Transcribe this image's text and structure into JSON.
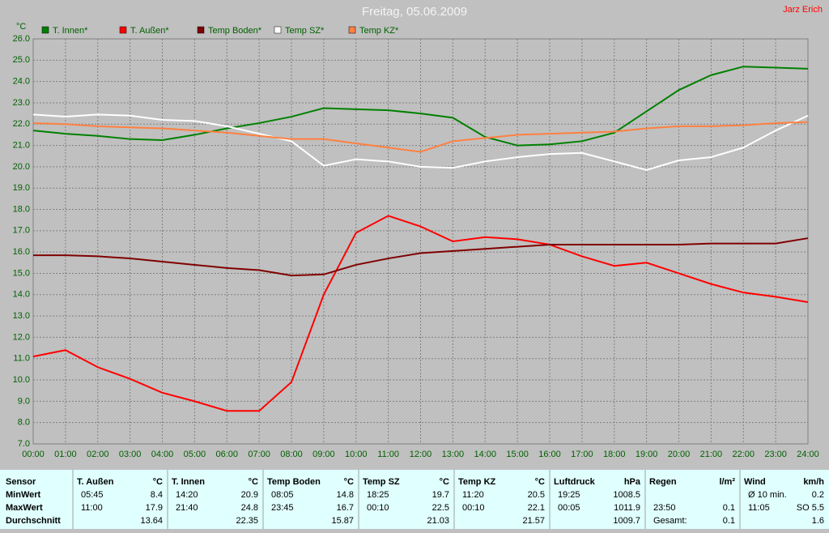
{
  "chart_data": {
    "type": "line",
    "title": "Freitag, 05.06.2009",
    "author": "Jarz Erich",
    "y_label": "°C",
    "x": [
      0,
      1,
      2,
      3,
      4,
      5,
      6,
      7,
      8,
      9,
      10,
      11,
      12,
      13,
      14,
      15,
      16,
      17,
      18,
      19,
      20,
      21,
      22,
      23,
      24
    ],
    "xlim": [
      0,
      24
    ],
    "xticks": [
      {
        "value": 0,
        "label": "00:00"
      },
      {
        "value": 1,
        "label": "01:00"
      },
      {
        "value": 2,
        "label": "02:00"
      },
      {
        "value": 3,
        "label": "03:00"
      },
      {
        "value": 4,
        "label": "04:00"
      },
      {
        "value": 5,
        "label": "05:00"
      },
      {
        "value": 6,
        "label": "06:00"
      },
      {
        "value": 7,
        "label": "07:00"
      },
      {
        "value": 8,
        "label": "08:00"
      },
      {
        "value": 9,
        "label": "09:00"
      },
      {
        "value": 10,
        "label": "10:00"
      },
      {
        "value": 11,
        "label": "11:00"
      },
      {
        "value": 12,
        "label": "12:00"
      },
      {
        "value": 13,
        "label": "13:00"
      },
      {
        "value": 14,
        "label": "14:00"
      },
      {
        "value": 15,
        "label": "15:00"
      },
      {
        "value": 16,
        "label": "16:00"
      },
      {
        "value": 17,
        "label": "17:00"
      },
      {
        "value": 18,
        "label": "18:00"
      },
      {
        "value": 19,
        "label": "19:00"
      },
      {
        "value": 20,
        "label": "20:00"
      },
      {
        "value": 21,
        "label": "21:00"
      },
      {
        "value": 22,
        "label": "22:00"
      },
      {
        "value": 23,
        "label": "23:00"
      },
      {
        "value": 24,
        "label": "24:00"
      }
    ],
    "ylim": [
      7,
      26
    ],
    "yticks": [
      {
        "value": 7,
        "label": "7.0"
      },
      {
        "value": 8,
        "label": "8.0"
      },
      {
        "value": 9,
        "label": "9.0"
      },
      {
        "value": 10,
        "label": "10.0"
      },
      {
        "value": 11,
        "label": "11.0"
      },
      {
        "value": 12,
        "label": "12.0"
      },
      {
        "value": 13,
        "label": "13.0"
      },
      {
        "value": 14,
        "label": "14.0"
      },
      {
        "value": 15,
        "label": "15.0"
      },
      {
        "value": 16,
        "label": "16.0"
      },
      {
        "value": 17,
        "label": "17.0"
      },
      {
        "value": 18,
        "label": "18.0"
      },
      {
        "value": 19,
        "label": "19.0"
      },
      {
        "value": 20,
        "label": "20.0"
      },
      {
        "value": 21,
        "label": "21.0"
      },
      {
        "value": 22,
        "label": "22.0"
      },
      {
        "value": 23,
        "label": "23.0"
      },
      {
        "value": 24,
        "label": "24.0"
      },
      {
        "value": 25,
        "label": "25.0"
      },
      {
        "value": 26,
        "label": "26.0"
      }
    ],
    "grid": true,
    "series": [
      {
        "name": "T. Innen*",
        "color": "#008000",
        "values": [
          21.7,
          21.55,
          21.45,
          21.3,
          21.25,
          21.5,
          21.8,
          22.05,
          22.35,
          22.75,
          22.7,
          22.65,
          22.5,
          22.3,
          21.4,
          21.0,
          21.05,
          21.2,
          21.6,
          22.6,
          23.6,
          24.3,
          24.7,
          24.65,
          24.6
        ]
      },
      {
        "name": "T. Außen*",
        "color": "#ff0000",
        "values": [
          11.1,
          11.4,
          10.6,
          10.05,
          9.4,
          9.0,
          8.55,
          8.55,
          9.9,
          14.0,
          16.9,
          17.7,
          17.2,
          16.5,
          16.7,
          16.6,
          16.35,
          15.8,
          15.35,
          15.5,
          15.0,
          14.5,
          14.1,
          13.9,
          13.65
        ]
      },
      {
        "name": "Temp Boden*",
        "color": "#800000",
        "values": [
          15.85,
          15.85,
          15.8,
          15.7,
          15.55,
          15.4,
          15.25,
          15.15,
          14.9,
          14.95,
          15.4,
          15.7,
          15.95,
          16.05,
          16.15,
          16.25,
          16.35,
          16.35,
          16.35,
          16.35,
          16.35,
          16.4,
          16.4,
          16.4,
          16.65
        ]
      },
      {
        "name": "Temp SZ*",
        "color": "#ffffff",
        "values": [
          22.45,
          22.35,
          22.45,
          22.4,
          22.2,
          22.15,
          21.9,
          21.55,
          21.2,
          20.05,
          20.35,
          20.25,
          20.0,
          19.95,
          20.25,
          20.45,
          20.6,
          20.65,
          20.25,
          19.85,
          20.3,
          20.45,
          20.9,
          21.7,
          22.4
        ]
      },
      {
        "name": "Temp KZ*",
        "color": "#ff8040",
        "values": [
          22.05,
          22.0,
          21.9,
          21.85,
          21.8,
          21.7,
          21.6,
          21.45,
          21.3,
          21.3,
          21.1,
          20.9,
          20.7,
          21.2,
          21.35,
          21.5,
          21.55,
          21.6,
          21.65,
          21.8,
          21.9,
          21.9,
          21.95,
          22.05,
          22.1
        ]
      }
    ]
  },
  "table": {
    "sensor_header": "Sensor",
    "row_labels": [
      "MinWert",
      "MaxWert",
      "Durchschnitt"
    ],
    "columns": [
      {
        "name": "T. Außen",
        "unit": "°C",
        "rows": [
          [
            "05:45",
            "8.4"
          ],
          [
            "11:00",
            "17.9"
          ],
          [
            null,
            "13.64"
          ]
        ]
      },
      {
        "name": "T. Innen",
        "unit": "°C",
        "rows": [
          [
            "14:20",
            "20.9"
          ],
          [
            "21:40",
            "24.8"
          ],
          [
            null,
            "22.35"
          ]
        ]
      },
      {
        "name": "Temp Boden",
        "unit": "°C",
        "rows": [
          [
            "08:05",
            "14.8"
          ],
          [
            "23:45",
            "16.7"
          ],
          [
            null,
            "15.87"
          ]
        ]
      },
      {
        "name": "Temp SZ",
        "unit": "°C",
        "rows": [
          [
            "18:25",
            "19.7"
          ],
          [
            "00:10",
            "22.5"
          ],
          [
            null,
            "21.03"
          ]
        ]
      },
      {
        "name": "Temp KZ",
        "unit": "°C",
        "rows": [
          [
            "11:20",
            "20.5"
          ],
          [
            "00:10",
            "22.1"
          ],
          [
            null,
            "21.57"
          ]
        ]
      },
      {
        "name": "Luftdruck",
        "unit": "hPa",
        "rows": [
          [
            "19:25",
            "1008.5"
          ],
          [
            "00:05",
            "1011.9"
          ],
          [
            null,
            "1009.7"
          ]
        ]
      },
      {
        "name": "Regen",
        "unit": "l/m²",
        "rows": [
          [
            null,
            null
          ],
          [
            "23:50",
            "0.1"
          ],
          [
            "Gesamt:",
            "0.1"
          ]
        ]
      },
      {
        "name": "Wind",
        "unit": "km/h",
        "rows": [
          [
            "Ø 10 min.",
            "0.2"
          ],
          [
            "11:05",
            "SO 5.5"
          ],
          [
            null,
            "1.6"
          ]
        ]
      }
    ]
  }
}
